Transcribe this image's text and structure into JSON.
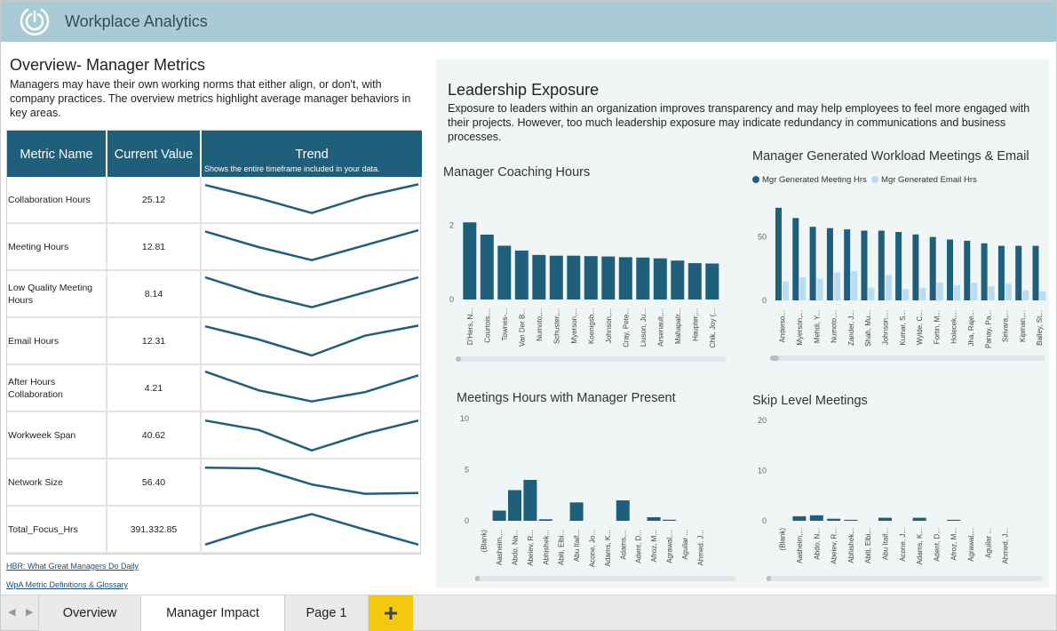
{
  "header": {
    "app_title": "Workplace Analytics",
    "logo_icon": "workplace-analytics-logo-icon"
  },
  "overview": {
    "title": "Overview- Manager Metrics",
    "description": "Managers may have their own working norms that either align, or don't, with company practices. The overview metrics highlight average manager behaviors in key areas."
  },
  "metric_table": {
    "headers": {
      "name": "Metric Name",
      "value": "Current Value",
      "trend": "Trend",
      "trend_sub": "Shows the entire timeframe included in your data."
    },
    "rows": [
      {
        "name": "Collaboration Hours",
        "value": "25.12",
        "trend": [
          0.1,
          0.45,
          0.85,
          0.4,
          0.08
        ]
      },
      {
        "name": "Meeting Hours",
        "value": "12.81",
        "trend": [
          0.08,
          0.5,
          0.85,
          0.45,
          0.05
        ]
      },
      {
        "name": "Low Quality Meeting Hours",
        "value": "8.14",
        "trend": [
          0.05,
          0.5,
          0.85,
          0.45,
          0.05
        ]
      },
      {
        "name": "Email Hours",
        "value": "12.31",
        "trend": [
          0.1,
          0.45,
          0.88,
          0.35,
          0.08
        ]
      },
      {
        "name": "After Hours Collaboration",
        "value": "4.21",
        "trend": [
          0.05,
          0.55,
          0.85,
          0.6,
          0.15
        ]
      },
      {
        "name": "Workweek Span",
        "value": "40.62",
        "trend": [
          0.1,
          0.35,
          0.9,
          0.45,
          0.1
        ]
      },
      {
        "name": "Network Size",
        "value": "56.40",
        "trend": [
          0.1,
          0.12,
          0.55,
          0.8,
          0.78
        ]
      },
      {
        "name": "Total_Focus_Hrs",
        "value": "391,332.85",
        "trend": [
          0.9,
          0.45,
          0.08,
          0.5,
          0.9
        ]
      }
    ]
  },
  "links": {
    "hbr": "HBR: What Great Managers Do Daily",
    "wpa": "WpA Metric Definitions & Glossary"
  },
  "leadership": {
    "title": "Leadership Exposure",
    "description": "Exposure to leaders within an organization improves transparency and may help employees to feel more engaged with their projects. However, too much leadership exposure may indicate redundancy in communications and business processes."
  },
  "colors": {
    "dark_bar": "#1f5f7c",
    "light_bar": "#b8ddf2",
    "accent_add": "#f2c811",
    "header_bg": "#a9cbd6"
  },
  "chart_data": [
    {
      "type": "bar",
      "title": "Manager Coaching Hours",
      "ylim": [
        0,
        2.3
      ],
      "yticks": [
        0,
        2
      ],
      "categories": [
        "D'Hers, N...",
        "Courtois,...",
        "Townes-...",
        "Van Der B...",
        "Numoto,...",
        "Schuster,...",
        "Myerson,...",
        "Koenigsb...",
        "Johnson,...",
        "Cray, Pete...",
        "Liuson, Ju...",
        "Arsenault,...",
        "Mahapatr...",
        "Haupter,...",
        "Chik, Joy (..."
      ],
      "series": [
        {
          "values": [
            2.08,
            1.75,
            1.45,
            1.32,
            1.2,
            1.18,
            1.18,
            1.17,
            1.16,
            1.14,
            1.13,
            1.11,
            1.05,
            0.98,
            0.97
          ]
        }
      ]
    },
    {
      "type": "bar",
      "title": "Manager Generated Workload Meetings & Email",
      "legend": [
        "Mgr Generated Meeting Hrs",
        "Mgr Generated Email Hrs"
      ],
      "ylim": [
        0,
        82
      ],
      "yticks": [
        0,
        50
      ],
      "categories": [
        "Anderso...",
        "Myerson,...",
        "Mehdi, Y...",
        "Numoto,...",
        "Zander, J...",
        "Shah, Mu...",
        "Johnson,...",
        "Kumar, S...",
        "Wylde, C...",
        "Fortin, M...",
        "Holecek,...",
        "Jha, Raje...",
        "Panay, Pa...",
        "Sirivara,...",
        "Kipman,...",
        "Bailey, St..."
      ],
      "series": [
        {
          "name": "Mgr Generated Meeting Hrs",
          "values": [
            73,
            65,
            58,
            57,
            56,
            55,
            55,
            54,
            52,
            50,
            48,
            47,
            45,
            43,
            43,
            43
          ]
        },
        {
          "name": "Mgr Generated Email Hrs",
          "values": [
            15,
            18,
            17,
            22,
            23,
            10,
            20,
            9,
            10,
            14,
            12,
            14,
            11,
            13,
            8,
            7
          ]
        }
      ]
    },
    {
      "type": "bar",
      "title": "Meetings Hours with Manager Present",
      "ylim": [
        0,
        10
      ],
      "yticks": [
        0,
        5,
        10
      ],
      "categories": [
        "(Blank)",
        "Aasheim,...",
        "Abdo, Na...",
        "Abeiev, R...",
        "Abhishek...",
        "Abiti, Elbi...",
        "Abu Itaif...",
        "Acone, Jo...",
        "Adams, K...",
        "Adams,...",
        "Adent, D...",
        "Afroz, M...",
        "Agrawal,...",
        "Aguilar ...",
        "Ahmed, J..."
      ],
      "series": [
        {
          "values": [
            0,
            1.0,
            3.0,
            4.0,
            0.15,
            0,
            1.8,
            0,
            0,
            2.0,
            0,
            0.35,
            0.1,
            0,
            0
          ]
        }
      ]
    },
    {
      "type": "bar",
      "title": "Skip Level Meetings",
      "ylim": [
        0,
        20
      ],
      "yticks": [
        0,
        10,
        20
      ],
      "categories": [
        "(Blank)",
        "Aasheim,...",
        "Abdo, N...",
        "Abeiev, R...",
        "Abhishek...",
        "Abiti, Elbi...",
        "Abu Itaif...",
        "Acone, J...",
        "Adams, K...",
        "Adent, D...",
        "Afroz, M...",
        "Agrawal,...",
        "Aguilar ...",
        "Ahmed, J..."
      ],
      "series": [
        {
          "values": [
            0,
            0.9,
            1.1,
            0.4,
            0.2,
            0,
            0.6,
            0,
            0.6,
            0,
            0.2,
            0,
            0,
            0
          ]
        }
      ]
    }
  ],
  "tabs": {
    "nav_prev_icon": "chevron-left-icon",
    "nav_next_icon": "chevron-right-icon",
    "items": [
      {
        "label": "Overview"
      },
      {
        "label": "Manager Impact",
        "active": true
      },
      {
        "label": "Page 1"
      }
    ],
    "add_label": "+"
  }
}
